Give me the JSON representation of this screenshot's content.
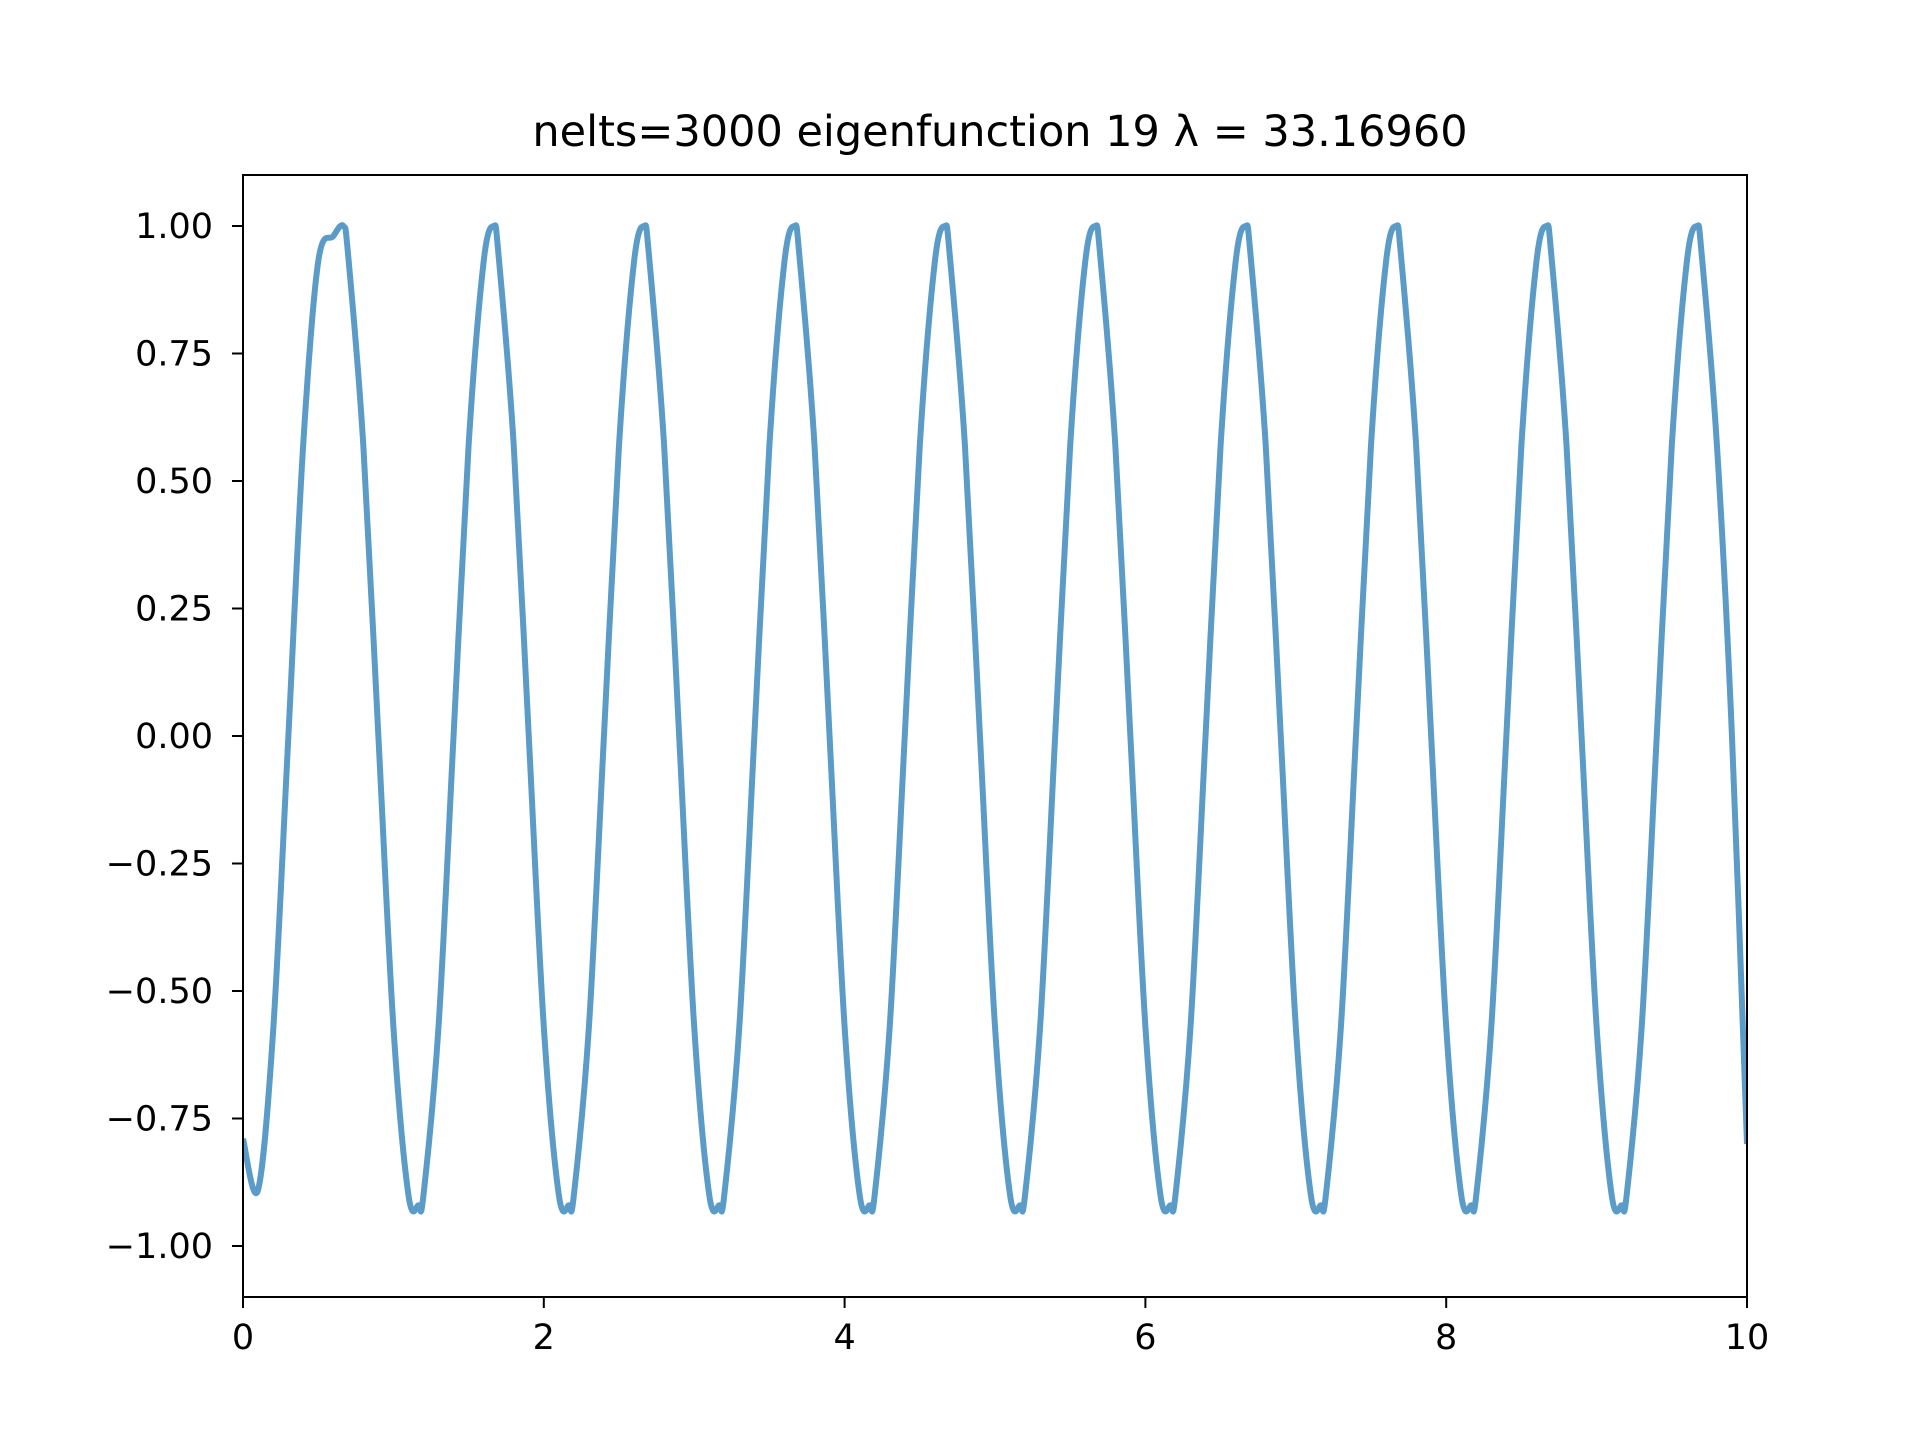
{
  "chart_data": {
    "type": "line",
    "title": "nelts=3000  eigenfunction 19  λ = 33.16960",
    "xlabel": "",
    "ylabel": "",
    "xlim": [
      0,
      10
    ],
    "ylim": [
      -1.1,
      1.1
    ],
    "grid": false,
    "line_color": "#5b9bc8",
    "x_ticks": [
      0,
      2,
      4,
      6,
      8,
      10
    ],
    "x_tick_labels": [
      "0",
      "2",
      "4",
      "6",
      "8",
      "10"
    ],
    "y_ticks": [
      1.0,
      0.75,
      0.5,
      0.25,
      0.0,
      -0.25,
      -0.5,
      -0.75,
      -1.0
    ],
    "y_tick_labels": [
      "1.00",
      "0.75",
      "0.50",
      "0.25",
      "0.00",
      "−0.25",
      "−0.50",
      "−0.75",
      "−1.00"
    ],
    "series": [
      {
        "x": [
          0,
          0.1,
          0.2,
          0.3,
          0.4,
          0.5,
          0.6,
          0.667,
          0.7,
          0.8,
          0.9,
          1.0,
          1.1,
          1.167,
          1.2,
          1.3,
          1.4,
          1.5,
          1.6,
          1.667,
          1.7,
          1.8,
          1.9,
          2.0,
          2.1,
          2.167,
          2.2,
          2.3,
          2.4,
          2.5,
          2.6,
          2.667,
          2.7,
          2.8,
          2.9,
          3.0,
          3.1,
          3.167,
          3.2,
          3.3,
          3.4,
          3.5,
          3.6,
          3.667,
          3.7,
          3.8,
          3.9,
          4.0,
          4.1,
          4.167,
          4.2,
          4.3,
          4.4,
          4.5,
          4.6,
          4.667,
          4.7,
          4.8,
          4.9,
          5.0,
          5.1,
          5.167,
          5.2,
          5.3,
          5.4,
          5.5,
          5.6,
          5.667,
          5.7,
          5.8,
          5.9,
          6.0,
          6.1,
          6.167,
          6.2,
          6.3,
          6.4,
          6.5,
          6.6,
          6.667,
          6.7,
          6.8,
          6.9,
          7.0,
          7.1,
          7.167,
          7.2,
          7.3,
          7.4,
          7.5,
          7.6,
          7.667,
          7.7,
          7.8,
          7.9,
          8.0,
          8.1,
          8.167,
          8.2,
          8.3,
          8.4,
          8.5,
          8.6,
          8.667,
          8.7,
          8.8,
          8.9,
          9.0,
          9.1,
          9.167,
          9.2,
          9.3,
          9.4,
          9.5,
          9.6,
          9.667,
          9.7,
          9.8,
          9.9,
          10.0
        ],
        "values": [
          -0.79,
          -0.89,
          -0.58,
          -0.01,
          0.57,
          0.93,
          0.98,
          1.0,
          0.94,
          0.57,
          0.0,
          -0.57,
          -0.9,
          -0.92,
          -0.9,
          -0.57,
          0.0,
          0.57,
          0.93,
          1.0,
          0.94,
          0.57,
          0.0,
          -0.57,
          -0.9,
          -0.92,
          -0.9,
          -0.57,
          0.0,
          0.57,
          0.93,
          1.0,
          0.94,
          0.57,
          0.0,
          -0.57,
          -0.9,
          -0.92,
          -0.9,
          -0.57,
          0.0,
          0.57,
          0.93,
          1.0,
          0.94,
          0.57,
          0.0,
          -0.57,
          -0.9,
          -0.92,
          -0.9,
          -0.57,
          0.0,
          0.57,
          0.93,
          1.0,
          0.94,
          0.57,
          0.0,
          -0.57,
          -0.9,
          -0.92,
          -0.9,
          -0.57,
          0.0,
          0.57,
          0.93,
          1.0,
          0.94,
          0.57,
          0.0,
          -0.57,
          -0.9,
          -0.92,
          -0.9,
          -0.57,
          0.0,
          0.57,
          0.93,
          1.0,
          0.94,
          0.57,
          0.0,
          -0.57,
          -0.9,
          -0.92,
          -0.9,
          -0.57,
          0.0,
          0.57,
          0.93,
          1.0,
          0.94,
          0.57,
          0.0,
          -0.57,
          -0.9,
          -0.92,
          -0.9,
          -0.57,
          0.0,
          0.57,
          0.93,
          1.0,
          0.94,
          0.57,
          0.0,
          -0.57,
          -0.9,
          -0.92,
          -0.9,
          -0.57,
          0.0,
          0.57,
          0.93,
          1.0,
          0.94,
          0.57,
          0.0,
          -0.8
        ]
      }
    ]
  }
}
